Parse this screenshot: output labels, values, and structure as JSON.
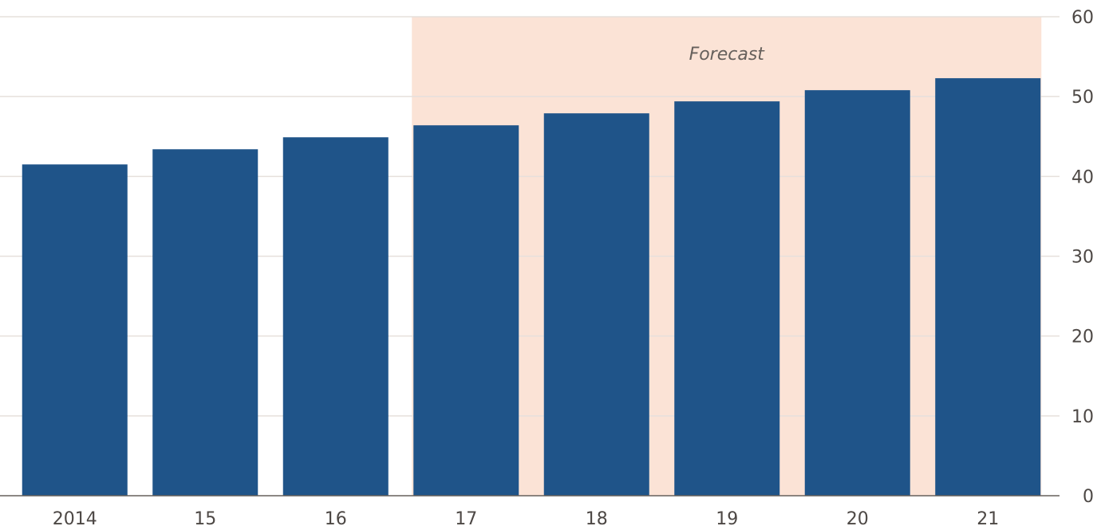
{
  "chart_data": {
    "type": "bar",
    "categories": [
      "2014",
      "15",
      "16",
      "17",
      "18",
      "19",
      "20",
      "21"
    ],
    "values": [
      41.5,
      43.4,
      44.9,
      46.4,
      47.9,
      49.4,
      50.8,
      52.3
    ],
    "ylim": [
      0,
      60
    ],
    "yticks": [
      0,
      10,
      20,
      30,
      40,
      50,
      60
    ],
    "y_axis_side": "right",
    "grid": true,
    "annotation": {
      "label": "Forecast",
      "start_category": "17",
      "end_category": "21"
    },
    "colors": {
      "bar": "#1f5489",
      "forecast_band": "#fbe3d6",
      "grid": "#e6e0dc",
      "baseline": "#66605c"
    }
  }
}
